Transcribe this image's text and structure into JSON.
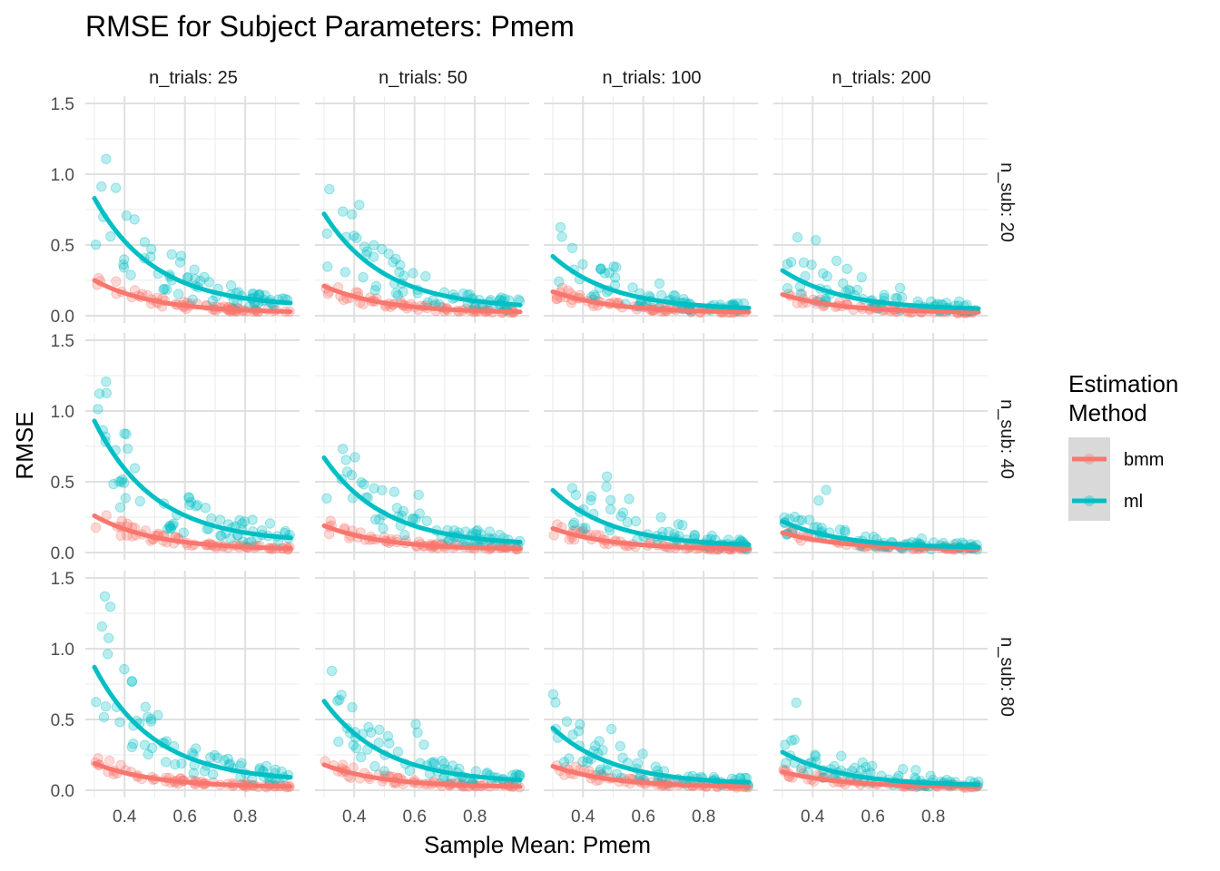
{
  "chart_data": {
    "type": "scatter",
    "title": "RMSE for Subject Parameters: Pmem",
    "xlabel": "Sample Mean: Pmem",
    "ylabel": "RMSE",
    "xlim": [
      0.3,
      0.95
    ],
    "ylim": [
      0,
      1.5
    ],
    "x_ticks": [
      "0.4",
      "0.6",
      "0.8"
    ],
    "y_ticks": [
      "0.0",
      "0.5",
      "1.0",
      "1.5"
    ],
    "grid": true,
    "facet_cols": [
      "n_trials: 25",
      "n_trials: 50",
      "n_trials: 100",
      "n_trials: 200"
    ],
    "facet_rows": [
      "n_sub: 20",
      "n_sub: 40",
      "n_sub: 80"
    ],
    "legend": {
      "title_lines": [
        "Estimation",
        "Method"
      ],
      "position": "right",
      "entries": [
        {
          "name": "bmm",
          "color": "#F8766D"
        },
        {
          "name": "ml",
          "color": "#00BFC4"
        }
      ]
    },
    "trend_lines": [
      {
        "row": 0,
        "col": 0,
        "bmm": [
          0.25,
          0.02
        ],
        "ml": [
          0.83,
          0.06
        ]
      },
      {
        "row": 0,
        "col": 1,
        "bmm": [
          0.21,
          0.02
        ],
        "ml": [
          0.72,
          0.05
        ]
      },
      {
        "row": 0,
        "col": 2,
        "bmm": [
          0.17,
          0.02
        ],
        "ml": [
          0.42,
          0.04
        ]
      },
      {
        "row": 0,
        "col": 3,
        "bmm": [
          0.15,
          0.02
        ],
        "ml": [
          0.32,
          0.04
        ]
      },
      {
        "row": 1,
        "col": 0,
        "bmm": [
          0.26,
          0.02
        ],
        "ml": [
          0.93,
          0.07
        ]
      },
      {
        "row": 1,
        "col": 1,
        "bmm": [
          0.19,
          0.02
        ],
        "ml": [
          0.67,
          0.05
        ]
      },
      {
        "row": 1,
        "col": 2,
        "bmm": [
          0.17,
          0.02
        ],
        "ml": [
          0.44,
          0.04
        ]
      },
      {
        "row": 1,
        "col": 3,
        "bmm": [
          0.14,
          0.02
        ],
        "ml": [
          0.22,
          0.03
        ]
      },
      {
        "row": 2,
        "col": 0,
        "bmm": [
          0.19,
          0.02
        ],
        "ml": [
          0.87,
          0.06
        ]
      },
      {
        "row": 2,
        "col": 1,
        "bmm": [
          0.18,
          0.02
        ],
        "ml": [
          0.63,
          0.05
        ]
      },
      {
        "row": 2,
        "col": 2,
        "bmm": [
          0.17,
          0.02
        ],
        "ml": [
          0.44,
          0.04
        ]
      },
      {
        "row": 2,
        "col": 3,
        "bmm": [
          0.13,
          0.02
        ],
        "ml": [
          0.27,
          0.03
        ]
      }
    ],
    "points_per_panel": 70
  }
}
